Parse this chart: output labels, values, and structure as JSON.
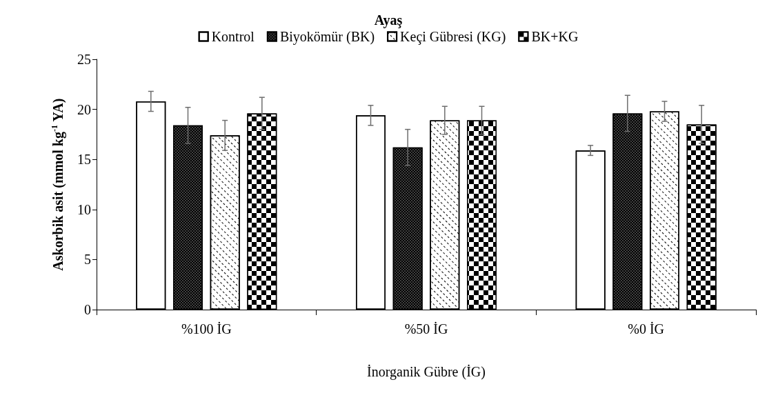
{
  "chart_data": {
    "type": "bar",
    "title": "Ayaş",
    "xlabel": "İnorganik Gübre (İG)",
    "ylabel": "Askorbik asit (mmol kg$^{-1}$ YA)",
    "categories": [
      "%100 İG",
      "%50 İG",
      "%0 İG"
    ],
    "series": [
      {
        "name": "Kontrol",
        "color": "#ffffff",
        "values": [
          20.8,
          19.4,
          15.9
        ],
        "errors": [
          1.0,
          1.0,
          0.5
        ]
      },
      {
        "name": "Biyokömür (BK)",
        "color": "#000000",
        "values": [
          18.4,
          16.2,
          19.6
        ],
        "errors": [
          1.8,
          1.8,
          1.8
        ]
      },
      {
        "name": "Keçi Gübresi (KG)",
        "color": "#ffffff",
        "values": [
          17.4,
          18.9,
          19.8
        ],
        "errors": [
          1.5,
          1.4,
          1.0
        ]
      },
      {
        "name": "BK+KG",
        "color": "#000000",
        "values": [
          19.6,
          18.9,
          18.5
        ],
        "errors": [
          1.6,
          1.4,
          1.9
        ]
      }
    ],
    "ylim": [
      0,
      25
    ],
    "yticks": [
      0,
      5,
      10,
      15,
      20,
      25
    ],
    "grid": false,
    "legend": "top"
  }
}
